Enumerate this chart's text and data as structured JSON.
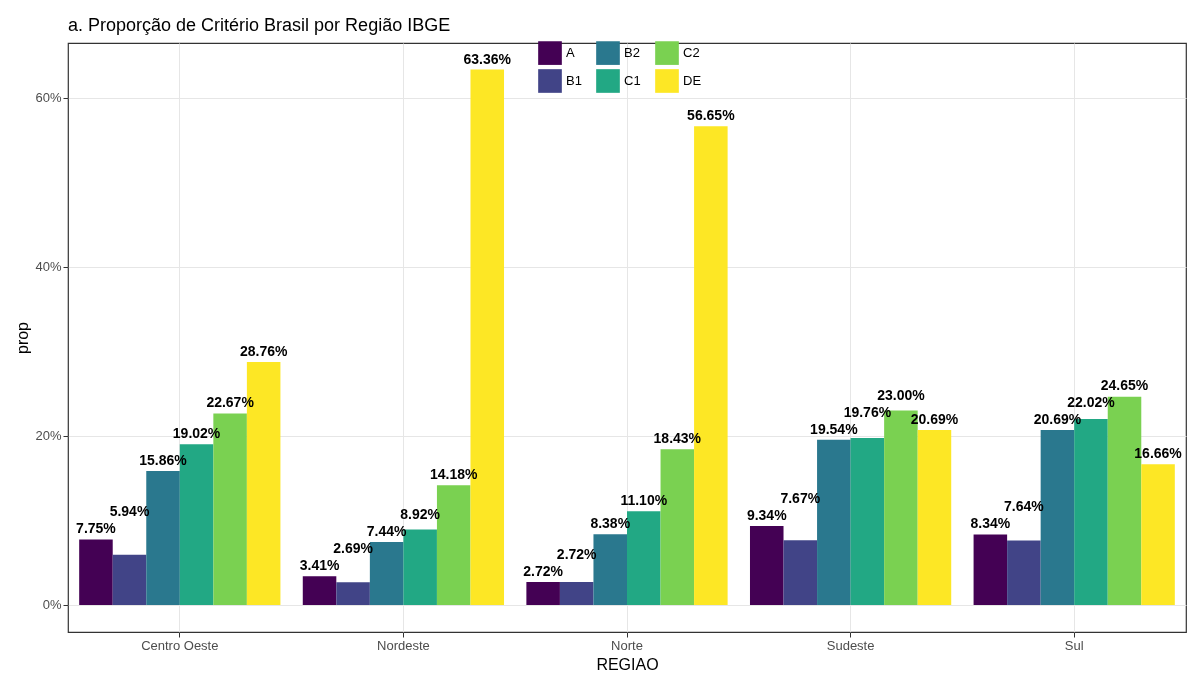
{
  "chart_data": {
    "type": "bar",
    "title": "a. Proporção de Critério Brasil por Região IBGE",
    "xlabel": "REGIAO",
    "ylabel": "prop",
    "categories": [
      "Centro Oeste",
      "Nordeste",
      "Norte",
      "Sudeste",
      "Sul"
    ],
    "series": [
      {
        "name": "A",
        "color": "#440154",
        "values": [
          7.75,
          3.41,
          2.72,
          9.34,
          8.34
        ],
        "value_labels": [
          "7.75%",
          "3.41%",
          "2.72%",
          "9.34%",
          "8.34%"
        ]
      },
      {
        "name": "B1",
        "color": "#414487",
        "values": [
          5.94,
          2.69,
          2.72,
          7.67,
          7.64
        ],
        "value_labels": [
          "5.94%",
          "2.69%",
          "2.72%",
          "7.67%",
          "7.64%"
        ]
      },
      {
        "name": "B2",
        "color": "#2a788e",
        "values": [
          15.86,
          7.44,
          8.38,
          19.54,
          20.69
        ],
        "value_labels": [
          "15.86%",
          "7.44%",
          "8.38%",
          "19.54%",
          "20.69%"
        ]
      },
      {
        "name": "C1",
        "color": "#22a884",
        "values": [
          19.02,
          8.92,
          11.1,
          19.76,
          22.02
        ],
        "value_labels": [
          "19.02%",
          "8.92%",
          "11.10%",
          "19.76%",
          "22.02%"
        ]
      },
      {
        "name": "C2",
        "color": "#7ad151",
        "values": [
          22.67,
          14.18,
          18.43,
          23.0,
          24.65
        ],
        "value_labels": [
          "22.67%",
          "14.18%",
          "18.43%",
          "23.00%",
          "24.65%"
        ]
      },
      {
        "name": "DE",
        "color": "#fde725",
        "values": [
          28.76,
          63.36,
          56.65,
          20.69,
          16.66
        ],
        "value_labels": [
          "28.76%",
          "63.36%",
          "56.65%",
          "20.69%",
          "16.66%"
        ]
      }
    ],
    "ylim": [
      -3.2,
      66.5
    ],
    "yticks": [
      {
        "value": 0,
        "label": "0%"
      },
      {
        "value": 20,
        "label": "20%"
      },
      {
        "value": 40,
        "label": "40%"
      },
      {
        "value": 60,
        "label": "60%"
      }
    ],
    "grid": true,
    "legend": "top"
  }
}
